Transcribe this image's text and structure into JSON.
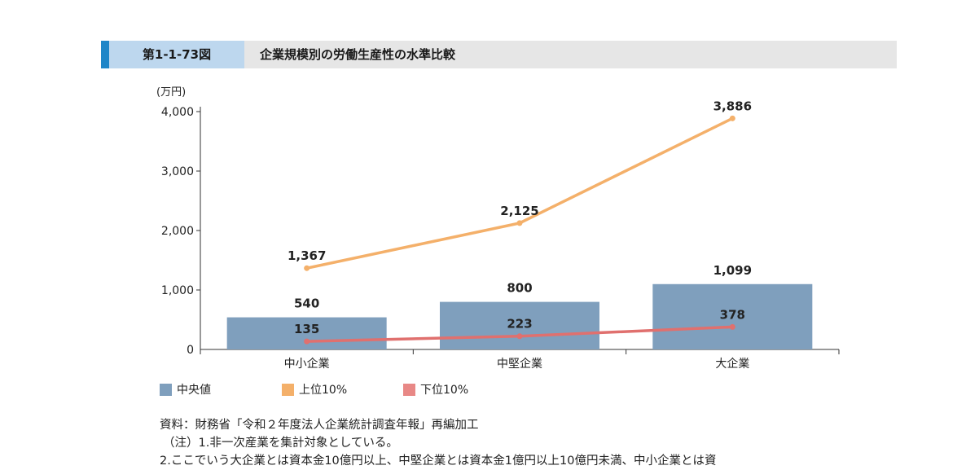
{
  "header": {
    "figure_number": "第1-1-73図",
    "title": "企業規模別の労働生産性の水準比較"
  },
  "chart_data": {
    "type": "bar",
    "ylabel": "(万円)",
    "ylim": [
      0,
      4000
    ],
    "yticks": [
      "0",
      "1,000",
      "2,000",
      "3,000",
      "4,000"
    ],
    "ytick_values": [
      0,
      1000,
      2000,
      3000,
      4000
    ],
    "categories": [
      "中小企業",
      "中堅企業",
      "大企業"
    ],
    "series": [
      {
        "name": "中央値",
        "type": "bar",
        "color": "#7f9fbd",
        "values": [
          540,
          800,
          1099
        ],
        "labels": [
          "540",
          "800",
          "1,099"
        ]
      },
      {
        "name": "上位10%",
        "type": "line",
        "color": "#f4b06a",
        "values": [
          1367,
          2125,
          3886
        ],
        "labels": [
          "1,367",
          "2,125",
          "3,886"
        ]
      },
      {
        "name": "下位10%",
        "type": "line",
        "color": "#e0706e",
        "values": [
          135,
          223,
          378
        ],
        "labels": [
          "135",
          "223",
          "378"
        ]
      }
    ],
    "legend_position": "bottom-left",
    "grid": false
  },
  "notes": [
    "資料：財務省「令和２年度法人企業統計調査年報」再編加工",
    "（注）1.非一次産業を集計対象としている。",
    "2.ここでいう大企業とは資本金10億円以上、中堅企業とは資本金1億円以上10億円未満、中小企業とは資"
  ]
}
